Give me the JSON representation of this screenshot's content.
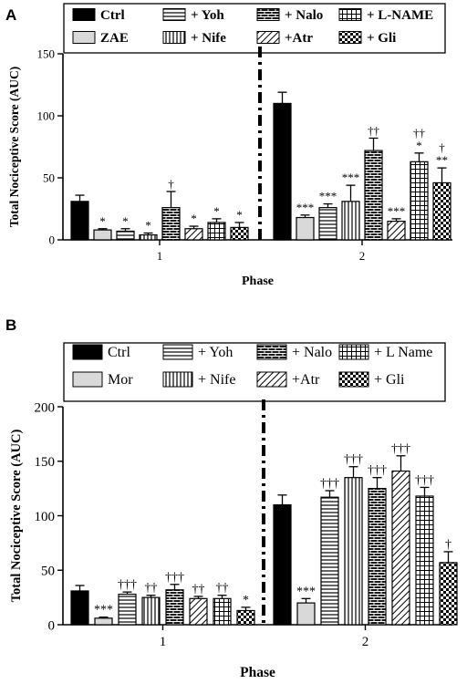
{
  "chart_data": [
    {
      "panel": "A",
      "type": "bar",
      "xlabel": "Phase",
      "ylabel": "Total Nociceptive Score (AUC)",
      "ylim": [
        0,
        150
      ],
      "yticks": [
        0,
        50,
        100,
        150
      ],
      "categories": [
        "1",
        "2"
      ],
      "legend_placement": "top",
      "series": [
        {
          "name": "Ctrl",
          "pattern": "solid",
          "values": [
            31,
            110
          ],
          "errors": [
            5,
            9
          ],
          "marks": [
            "",
            ""
          ]
        },
        {
          "name": "ZAE",
          "pattern": "light",
          "values": [
            8,
            18
          ],
          "errors": [
            1,
            2
          ],
          "marks": [
            "*",
            "***"
          ]
        },
        {
          "name": "+ Yoh",
          "pattern": "hlines",
          "values": [
            7,
            26
          ],
          "errors": [
            2,
            3
          ],
          "marks": [
            "*",
            "***"
          ]
        },
        {
          "name": "+ Nife",
          "pattern": "vlines",
          "values": [
            4,
            31
          ],
          "errors": [
            1.5,
            13
          ],
          "marks": [
            "*",
            "***"
          ]
        },
        {
          "name": "+ Nalo",
          "pattern": "brick",
          "values": [
            26,
            72
          ],
          "errors": [
            13,
            10
          ],
          "marks": [
            "†",
            "††"
          ]
        },
        {
          "name": "+Atr",
          "pattern": "diag",
          "values": [
            9,
            15
          ],
          "errors": [
            2,
            2
          ],
          "marks": [
            "*",
            "***"
          ]
        },
        {
          "name": "+ L-NAME",
          "pattern": "grid",
          "values": [
            14,
            63
          ],
          "errors": [
            3,
            7
          ],
          "marks": [
            "*",
            "††\n*"
          ]
        },
        {
          "name": "+ Gli",
          "pattern": "checker",
          "values": [
            10,
            46
          ],
          "errors": [
            4,
            12
          ],
          "marks": [
            "*",
            "†\n**"
          ]
        }
      ]
    },
    {
      "panel": "B",
      "type": "bar",
      "xlabel": "Phase",
      "ylabel": "Total Nociceptive Score (AUC)",
      "ylim": [
        0,
        200
      ],
      "yticks": [
        0,
        50,
        100,
        150,
        200
      ],
      "categories": [
        "1",
        "2"
      ],
      "legend_placement": "top",
      "series": [
        {
          "name": "Ctrl",
          "pattern": "solid",
          "values": [
            31,
            110
          ],
          "errors": [
            5,
            9
          ],
          "marks": [
            "",
            ""
          ]
        },
        {
          "name": "Mor",
          "pattern": "light",
          "values": [
            6,
            20
          ],
          "errors": [
            1,
            4
          ],
          "marks": [
            "***",
            "***"
          ]
        },
        {
          "name": "+ Yoh",
          "pattern": "hlines",
          "values": [
            28,
            117
          ],
          "errors": [
            2,
            6
          ],
          "marks": [
            "†††",
            "†††"
          ]
        },
        {
          "name": "+ Nife",
          "pattern": "vlines",
          "values": [
            25,
            135
          ],
          "errors": [
            2,
            10
          ],
          "marks": [
            "††",
            "†††"
          ]
        },
        {
          "name": "+ Nalo",
          "pattern": "brick",
          "values": [
            32,
            125
          ],
          "errors": [
            5,
            10
          ],
          "marks": [
            "†††",
            "†††"
          ]
        },
        {
          "name": "+Atr",
          "pattern": "diag",
          "values": [
            24,
            141
          ],
          "errors": [
            2,
            14
          ],
          "marks": [
            "††",
            "†††"
          ]
        },
        {
          "name": "+ L Name",
          "pattern": "grid",
          "values": [
            24,
            118
          ],
          "errors": [
            3,
            8
          ],
          "marks": [
            "††",
            "†††"
          ]
        },
        {
          "name": "+ Gli",
          "pattern": "checker",
          "values": [
            13,
            57
          ],
          "errors": [
            3,
            10
          ],
          "marks": [
            "*",
            "†"
          ]
        }
      ]
    }
  ]
}
